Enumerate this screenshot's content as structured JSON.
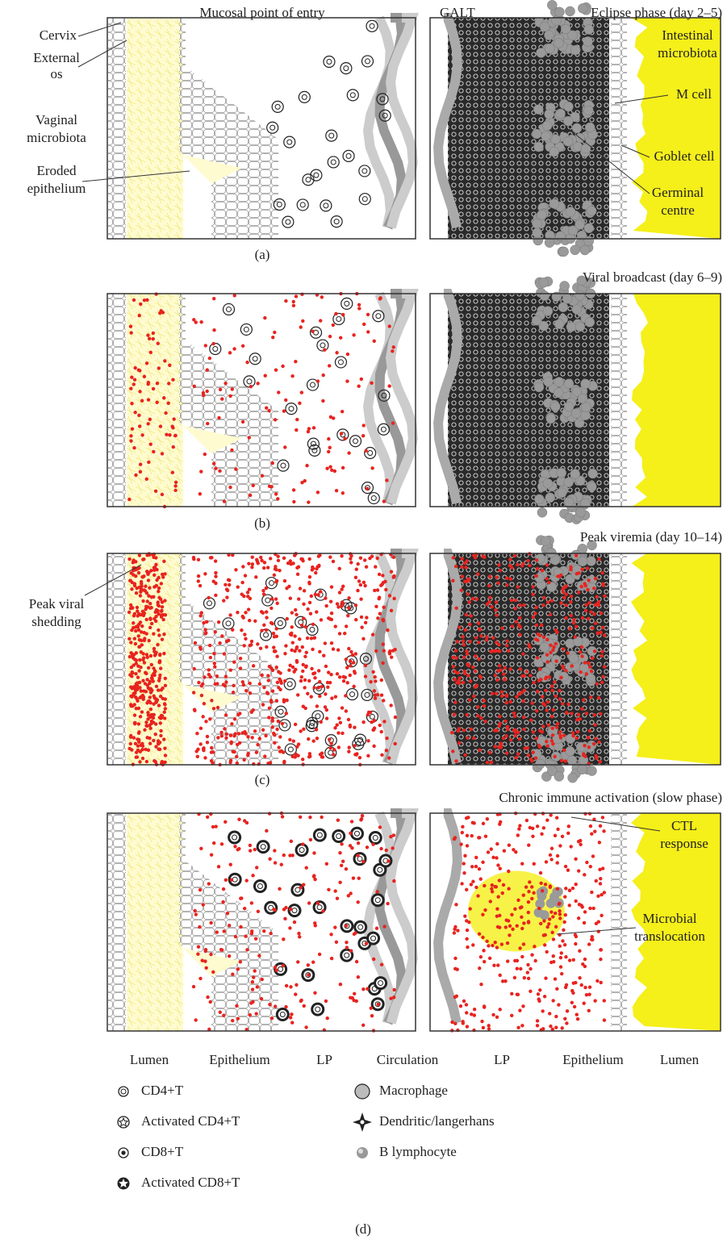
{
  "panels": [
    {
      "label": "(a)",
      "left_title": "Mucosal point of entry",
      "galt_title": "GALT",
      "right_title": "Eclipse phase (day 2–5)",
      "annotations": {
        "cervix": "Cervix",
        "external_os": [
          "External",
          "os"
        ],
        "vaginal_microbiota": [
          "Vaginal",
          "microbiota"
        ],
        "eroded_epithelium": [
          "Eroded",
          "epithelium"
        ],
        "intestinal_microbiota": [
          "Intestinal",
          "microbiota"
        ],
        "m_cell": "M cell",
        "goblet_cell": "Goblet cell",
        "germinal_centre": [
          "Germinal",
          "centre"
        ]
      }
    },
    {
      "label": "(b)",
      "right_title": "Viral broadcast (day 6–9)"
    },
    {
      "label": "(c)",
      "right_title": "Peak viremia (day 10–14)",
      "annotations": {
        "peak_viral_shedding": [
          "Peak viral",
          "shedding"
        ]
      }
    },
    {
      "label": "(d)",
      "right_title": "Chronic immune activation (slow phase)",
      "annotations": {
        "ctl_response": [
          "CTL",
          "response"
        ],
        "microbial_translocation": [
          "Microbial",
          "translocation"
        ]
      }
    }
  ],
  "regions": [
    "Lumen",
    "Epithelium",
    "LP",
    "Circulation",
    "LP",
    "Epithelium",
    "Lumen"
  ],
  "legend": [
    "CD4+T",
    "Activated CD4+T",
    "CD8+T",
    "Activated CD8+T",
    "Macrophage",
    "Dendritic/langerhans",
    "B lymphocyte"
  ]
}
